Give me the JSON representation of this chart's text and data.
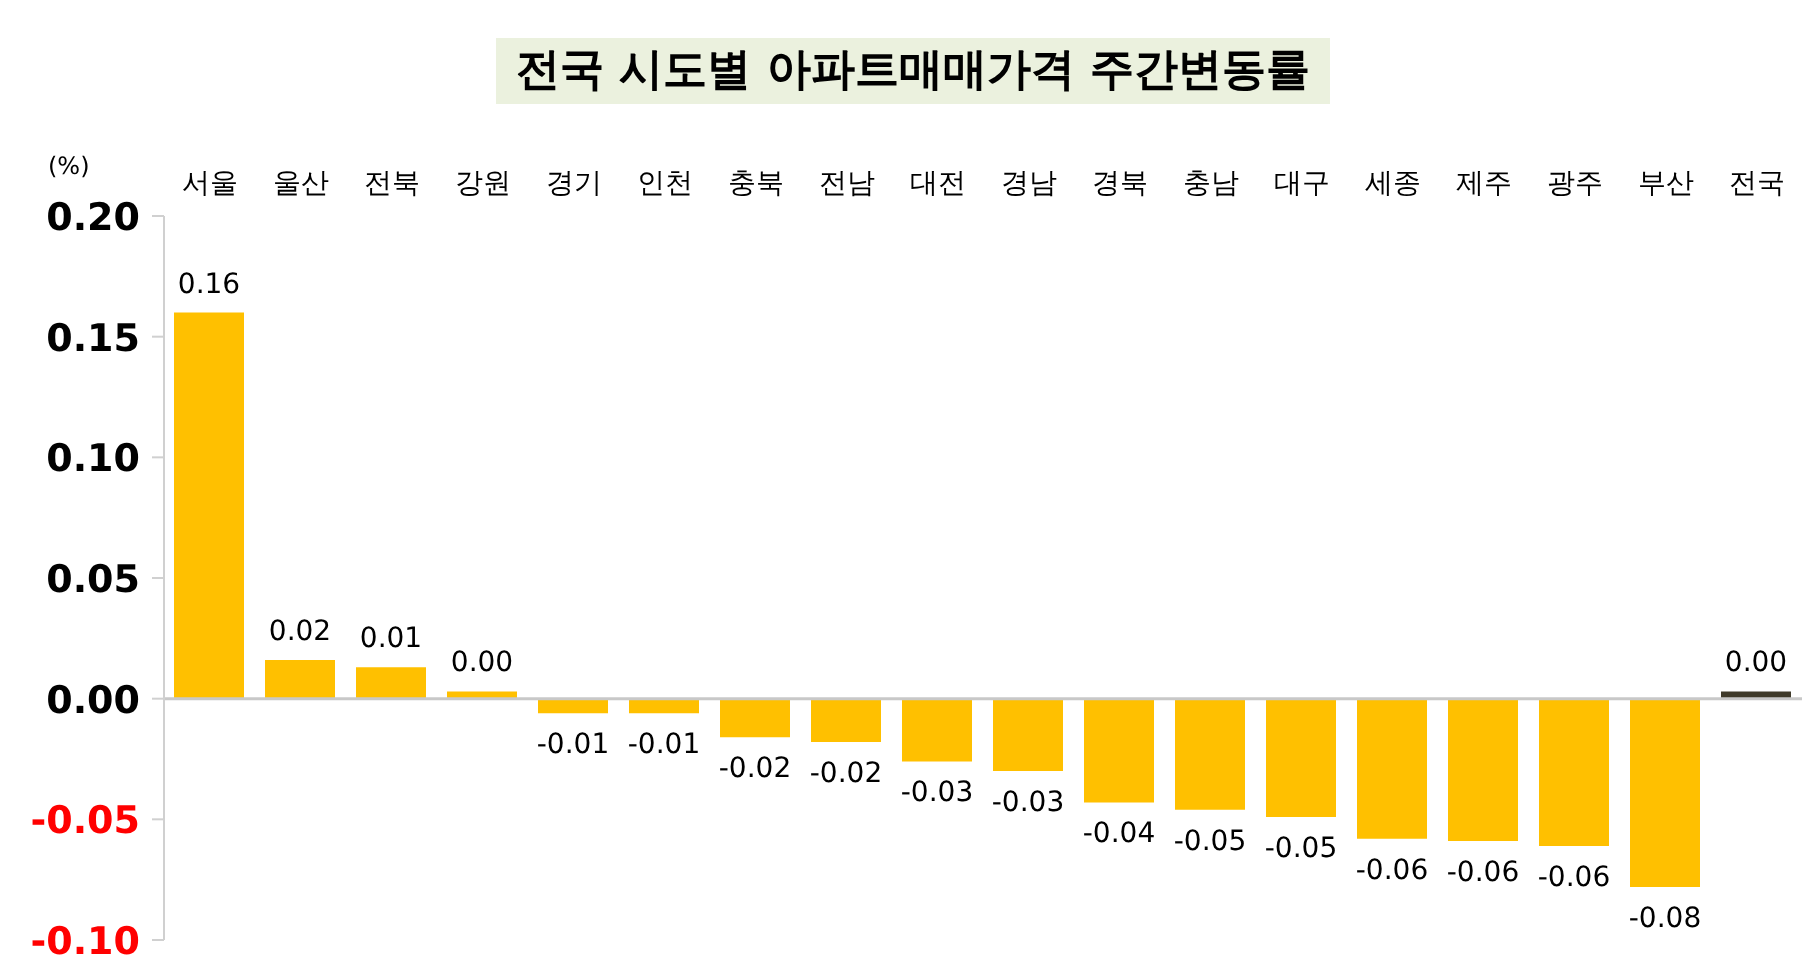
{
  "chart_data": {
    "type": "bar",
    "title": "전국 시도별 아파트매매가격 주간변동률",
    "ylabel": "(%)",
    "categories": [
      "서울",
      "울산",
      "전북",
      "강원",
      "경기",
      "인천",
      "충북",
      "전남",
      "대전",
      "경남",
      "경북",
      "충남",
      "대구",
      "세종",
      "제주",
      "광주",
      "부산",
      "전국"
    ],
    "values": [
      0.16,
      0.016,
      0.013,
      0.003,
      -0.006,
      -0.006,
      -0.016,
      -0.018,
      -0.026,
      -0.03,
      -0.043,
      -0.046,
      -0.049,
      -0.058,
      -0.059,
      -0.061,
      -0.078,
      0.003
    ],
    "colors": [
      "#ffc000",
      "#ffc000",
      "#ffc000",
      "#ffc000",
      "#ffc000",
      "#ffc000",
      "#ffc000",
      "#ffc000",
      "#ffc000",
      "#ffc000",
      "#ffc000",
      "#ffc000",
      "#ffc000",
      "#ffc000",
      "#ffc000",
      "#ffc000",
      "#ffc000",
      "#3f3a2a"
    ],
    "value_labels": [
      "0.16",
      "0.02",
      "0.01",
      "0.00",
      "-0.01",
      "-0.01",
      "-0.02",
      "-0.02",
      "-0.03",
      "-0.03",
      "-0.04",
      "-0.05",
      "-0.05",
      "-0.06",
      "-0.06",
      "-0.06",
      "-0.08",
      "0.00"
    ],
    "ylim": [
      -0.1,
      0.2
    ],
    "yticks": [
      {
        "value": -0.1,
        "label": "-0.10"
      },
      {
        "value": -0.05,
        "label": "-0.05"
      },
      {
        "value": 0,
        "label": "0.00"
      },
      {
        "value": 0.05,
        "label": "0.05"
      },
      {
        "value": 0.1,
        "label": "0.10"
      },
      {
        "value": 0.15,
        "label": "0.15"
      },
      {
        "value": 0.2,
        "label": "0.20"
      }
    ],
    "legend": false
  }
}
